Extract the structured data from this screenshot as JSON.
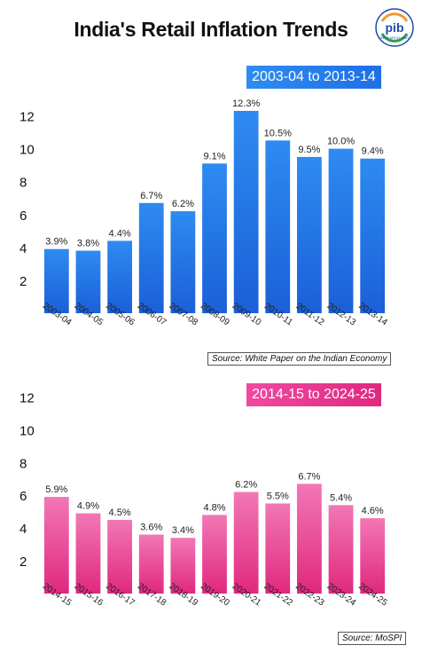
{
  "title": "India's Retail Inflation Trends",
  "logo": {
    "text": "pib",
    "subtext": "RESEARCH UNIT"
  },
  "colors": {
    "blue_top": "#2e8bf0",
    "blue_bottom": "#1b5fd9",
    "pink_top": "#f277b5",
    "pink_bottom": "#e0287f"
  },
  "chart_data": [
    {
      "type": "bar",
      "title": "2003-04 to 2013-14",
      "categories": [
        "2003-04",
        "2004-05",
        "2005-06",
        "2006-07",
        "2007-08",
        "2008-09",
        "2009-10",
        "2010-11",
        "2011-12",
        "2012-13",
        "2013-14"
      ],
      "values": [
        3.9,
        3.8,
        4.4,
        6.7,
        6.2,
        9.1,
        12.3,
        10.5,
        9.5,
        10.0,
        9.4
      ],
      "data_labels": [
        "3.9%",
        "3.8%",
        "4.4%",
        "6.7%",
        "6.2%",
        "9.1%",
        "12.3%",
        "10.5%",
        "9.5%",
        "10.0%",
        "9.4%"
      ],
      "yticks": [
        2,
        4,
        6,
        8,
        10,
        12
      ],
      "ylim": [
        0,
        13
      ],
      "grid": false,
      "source": "Source: White Paper on the Indian Economy"
    },
    {
      "type": "bar",
      "title": "2014-15 to 2024-25",
      "categories": [
        "2014-15",
        "2015-16",
        "2016-17",
        "2017-18",
        "2018-19",
        "2019-20",
        "2020-21",
        "2021-22",
        "2022-23",
        "2023-24",
        "2024-25"
      ],
      "values": [
        5.9,
        4.9,
        4.5,
        3.6,
        3.4,
        4.8,
        6.2,
        5.5,
        6.7,
        5.4,
        4.6
      ],
      "data_labels": [
        "5.9%",
        "4.9%",
        "4.5%",
        "3.6%",
        "3.4%",
        "4.8%",
        "6.2%",
        "5.5%",
        "6.7%",
        "5.4%",
        "4.6%"
      ],
      "yticks": [
        2,
        4,
        6,
        8,
        10,
        12
      ],
      "ylim": [
        0,
        13
      ],
      "grid": false,
      "source": "Source: MoSPI"
    }
  ]
}
